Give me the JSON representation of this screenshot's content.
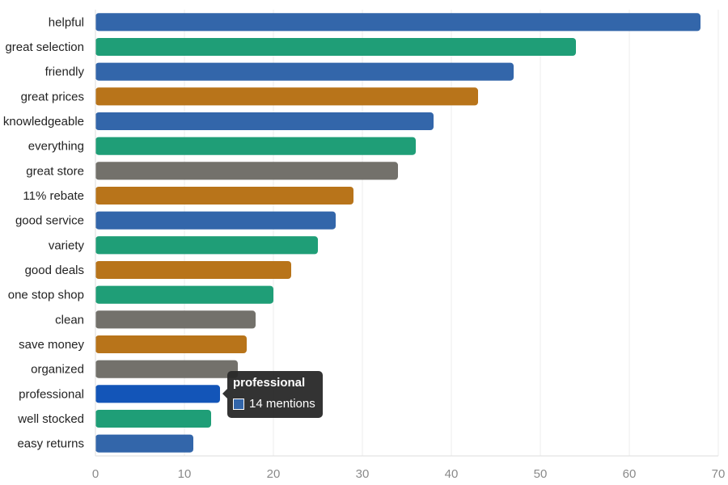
{
  "chart_data": {
    "type": "bar",
    "orientation": "horizontal",
    "title": "",
    "xlabel": "",
    "ylabel": "",
    "xlim": [
      0,
      70
    ],
    "x_ticks": [
      "0",
      "10",
      "20",
      "30",
      "40",
      "50",
      "60",
      "70"
    ],
    "grid": true,
    "categories": [
      "helpful",
      "great selection",
      "friendly",
      "great prices",
      "knowledgeable",
      "everything",
      "great store",
      "11% rebate",
      "good service",
      "variety",
      "good deals",
      "one stop shop",
      "clean",
      "save money",
      "organized",
      "professional",
      "well stocked",
      "easy returns"
    ],
    "values": [
      68,
      54,
      47,
      43,
      38,
      36,
      34,
      29,
      27,
      25,
      22,
      20,
      18,
      17,
      16,
      14,
      13,
      11
    ],
    "bar_colors": [
      "#3366aa",
      "#1f9e77",
      "#3366aa",
      "#b8741a",
      "#3366aa",
      "#1f9e77",
      "#73716b",
      "#b8741a",
      "#3366aa",
      "#1f9e77",
      "#b8741a",
      "#1f9e77",
      "#73716b",
      "#b8741a",
      "#73716b",
      "#1355b8",
      "#1f9e77",
      "#3366aa"
    ],
    "highlighted": "professional"
  },
  "tooltip": {
    "title": "professional",
    "value_text": "14 mentions",
    "swatch_color": "#3366aa"
  }
}
